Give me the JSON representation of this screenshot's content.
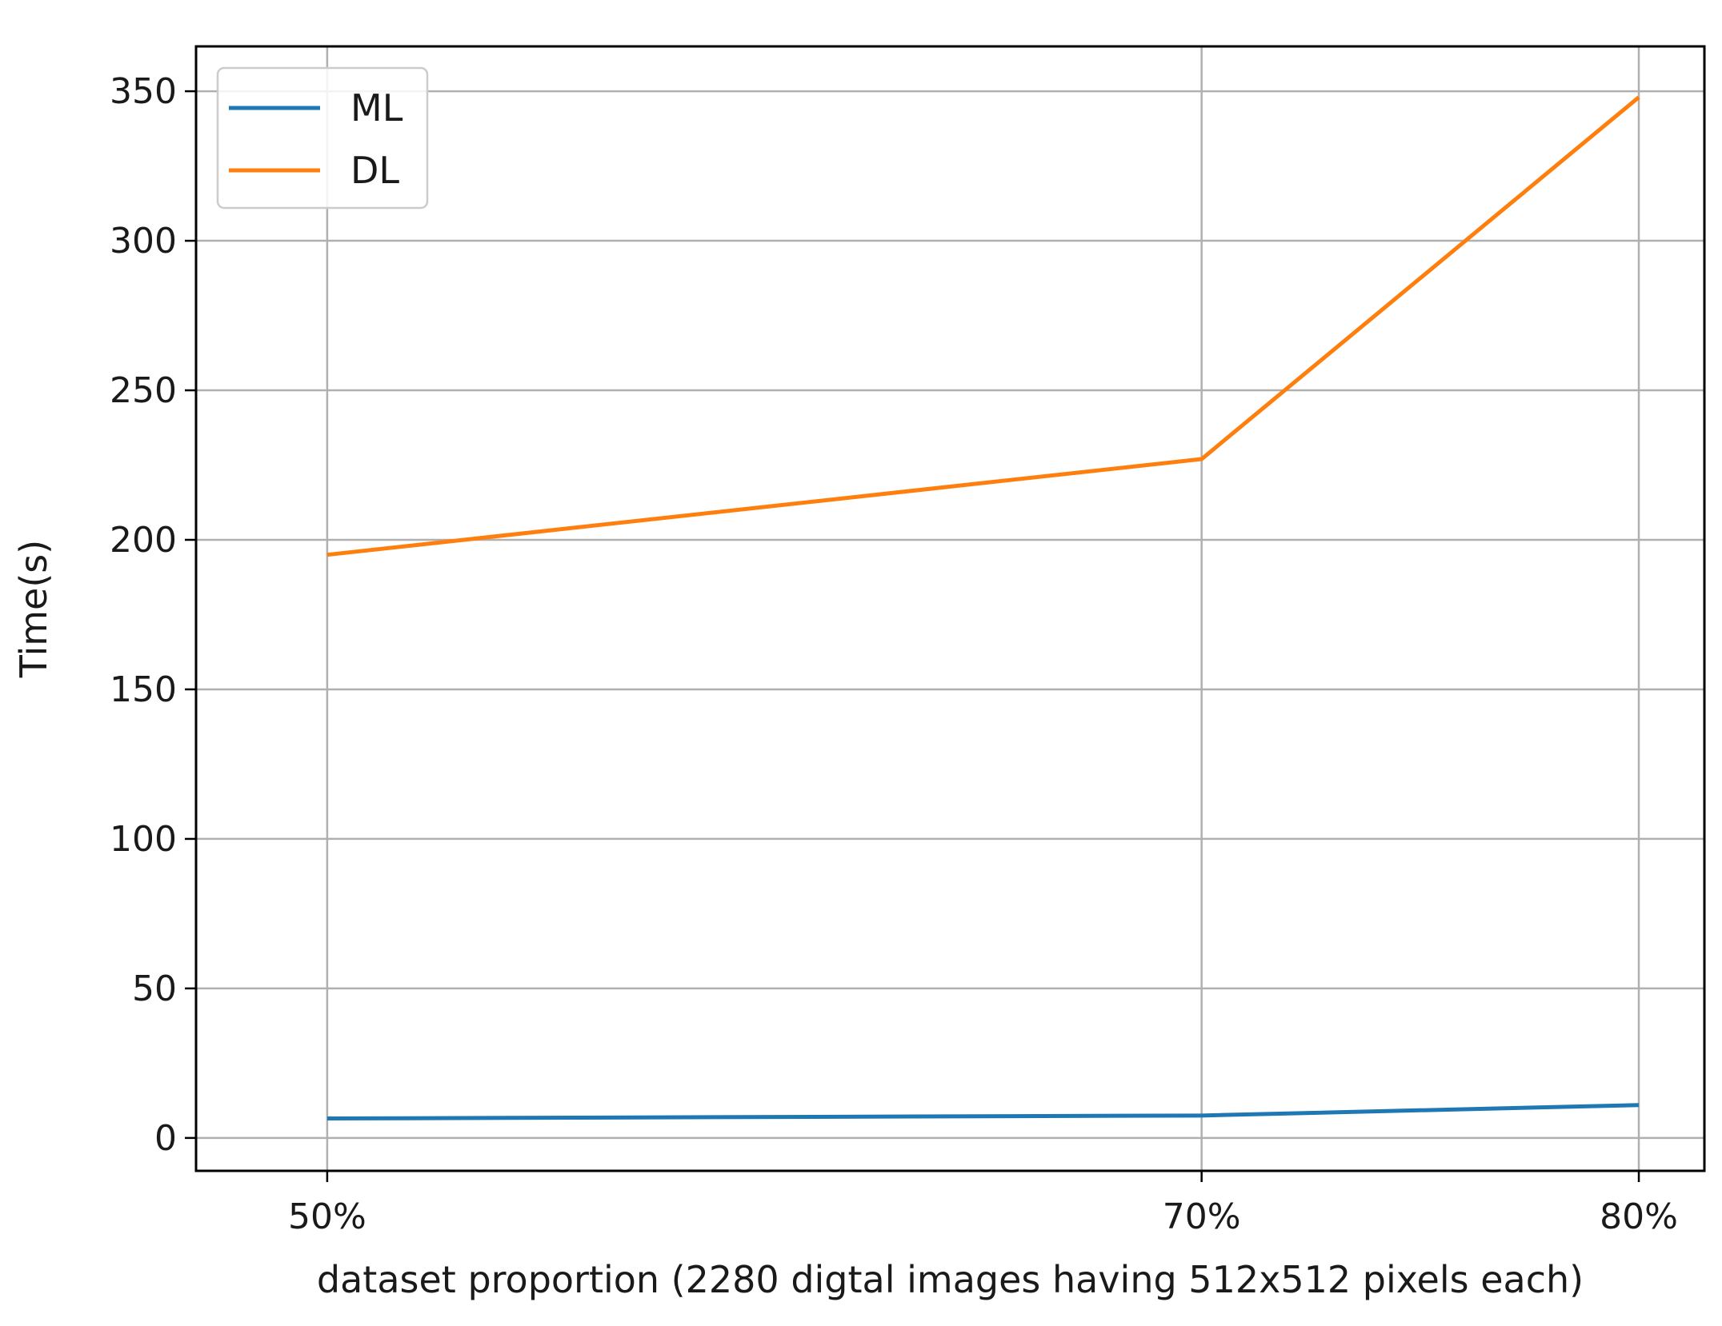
{
  "chart_data": {
    "type": "line",
    "categories": [
      "50%",
      "70%",
      "80%"
    ],
    "x": [
      50,
      70,
      80
    ],
    "series": [
      {
        "name": "ML",
        "values": [
          6.5,
          7.5,
          11
        ],
        "color": "#1f77b4"
      },
      {
        "name": "DL",
        "values": [
          195,
          227,
          348
        ],
        "color": "#ff7f0e"
      }
    ],
    "xlabel": "dataset proportion (2280 digtal images having 512x512 pixels each)",
    "ylabel": "Time(s)",
    "xlim": [
      47,
      81.5
    ],
    "ylim": [
      -11,
      365
    ],
    "yticks": [
      0,
      50,
      100,
      150,
      200,
      250,
      300,
      350
    ],
    "grid": true,
    "legend_position": "top-left"
  }
}
